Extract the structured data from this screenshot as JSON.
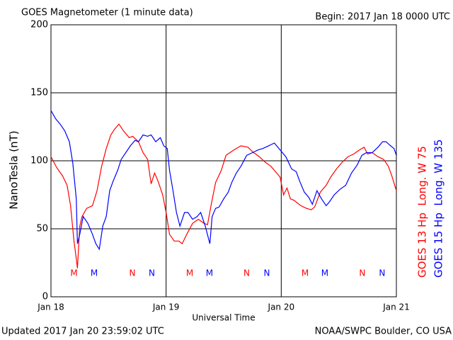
{
  "chart_data": {
    "type": "line",
    "title": "GOES Magnetometer (1 minute data)",
    "subtitle": "Begin:  2017 Jan 18 0000 UTC",
    "y_label": "NanoTesla (nT)",
    "x_label": "Universal Time",
    "footer_left": "Updated 2017 Jan 20 23:59:02 UTC",
    "footer_right": "NOAA/SWPC Boulder, CO USA",
    "xlim": [
      0,
      3
    ],
    "xticks": [
      {
        "value": 0,
        "label": "Jan 18"
      },
      {
        "value": 1,
        "label": "Jan 19"
      },
      {
        "value": 2,
        "label": "Jan 20"
      },
      {
        "value": 3,
        "label": "Jan 21"
      }
    ],
    "ylim": [
      0,
      200
    ],
    "yticks": [
      0,
      50,
      100,
      150,
      200
    ],
    "grid": true,
    "series": [
      {
        "name": "GOES 13 Hp  Long. W 75",
        "color": "#ff0000",
        "x": [
          0.0,
          0.05,
          0.1,
          0.14,
          0.17,
          0.2,
          0.22,
          0.23,
          0.25,
          0.27,
          0.31,
          0.36,
          0.4,
          0.44,
          0.48,
          0.52,
          0.55,
          0.59,
          0.63,
          0.68,
          0.71,
          0.76,
          0.8,
          0.84,
          0.87,
          0.9,
          0.93,
          0.97,
          1.0,
          1.03,
          1.07,
          1.11,
          1.14,
          1.18,
          1.23,
          1.28,
          1.33,
          1.36,
          1.39,
          1.43,
          1.48,
          1.52,
          1.59,
          1.65,
          1.71,
          1.76,
          1.81,
          1.86,
          1.91,
          1.95,
          1.99,
          2.02,
          2.05,
          2.08,
          2.11,
          2.17,
          2.22,
          2.26,
          2.29,
          2.34,
          2.39,
          2.43,
          2.48,
          2.53,
          2.58,
          2.63,
          2.68,
          2.72,
          2.75,
          2.79,
          2.84,
          2.89,
          2.93,
          2.96,
          3.0
        ],
        "values": [
          103,
          95,
          89,
          82,
          67,
          41,
          28,
          21,
          52,
          59,
          65,
          67,
          78,
          96,
          109,
          119,
          123,
          127,
          122,
          117,
          118,
          114,
          106,
          101,
          83,
          91,
          85,
          75,
          62,
          46,
          41,
          41,
          39,
          46,
          54,
          57,
          54,
          53,
          67,
          84,
          93,
          104,
          108,
          111,
          110,
          106,
          103,
          99,
          96,
          92,
          88,
          75,
          80,
          72,
          71,
          67,
          65,
          64,
          66,
          77,
          82,
          88,
          94,
          99,
          103,
          105,
          108,
          110,
          105,
          106,
          103,
          101,
          96,
          89,
          78
        ]
      },
      {
        "name": "GOES 15 Hp  Long. W 135",
        "color": "#0000ff",
        "x": [
          0.0,
          0.04,
          0.08,
          0.12,
          0.16,
          0.19,
          0.22,
          0.23,
          0.25,
          0.28,
          0.32,
          0.36,
          0.39,
          0.42,
          0.45,
          0.48,
          0.51,
          0.54,
          0.58,
          0.61,
          0.65,
          0.69,
          0.73,
          0.76,
          0.8,
          0.84,
          0.87,
          0.91,
          0.95,
          0.98,
          1.01,
          1.03,
          1.06,
          1.09,
          1.12,
          1.16,
          1.19,
          1.23,
          1.27,
          1.3,
          1.34,
          1.38,
          1.4,
          1.43,
          1.46,
          1.5,
          1.54,
          1.57,
          1.61,
          1.65,
          1.7,
          1.75,
          1.8,
          1.84,
          1.89,
          1.94,
          1.99,
          2.04,
          2.09,
          2.13,
          2.16,
          2.2,
          2.24,
          2.27,
          2.31,
          2.35,
          2.39,
          2.42,
          2.46,
          2.51,
          2.56,
          2.61,
          2.66,
          2.7,
          2.74,
          2.79,
          2.84,
          2.88,
          2.91,
          2.95,
          2.98,
          3.0
        ],
        "values": [
          137,
          131,
          127,
          122,
          114,
          98,
          72,
          39,
          46,
          59,
          54,
          46,
          39,
          35,
          52,
          59,
          78,
          85,
          93,
          101,
          106,
          111,
          115,
          114,
          119,
          118,
          119,
          114,
          117,
          111,
          109,
          93,
          78,
          62,
          52,
          62,
          62,
          57,
          59,
          62,
          52,
          39,
          59,
          65,
          66,
          72,
          77,
          84,
          91,
          96,
          104,
          106,
          108,
          109,
          111,
          113,
          108,
          103,
          94,
          92,
          85,
          77,
          73,
          68,
          78,
          72,
          67,
          70,
          75,
          79,
          82,
          91,
          97,
          104,
          106,
          106,
          110,
          114,
          114,
          111,
          109,
          104
        ]
      }
    ],
    "markers": [
      {
        "label": "M",
        "x": 0.2,
        "color": "#ff0000"
      },
      {
        "label": "M",
        "x": 0.375,
        "color": "#0000ff"
      },
      {
        "label": "N",
        "x": 0.707,
        "color": "#ff0000"
      },
      {
        "label": "N",
        "x": 0.876,
        "color": "#0000ff"
      },
      {
        "label": "M",
        "x": 1.205,
        "color": "#ff0000"
      },
      {
        "label": "M",
        "x": 1.377,
        "color": "#0000ff"
      },
      {
        "label": "N",
        "x": 1.7,
        "color": "#ff0000"
      },
      {
        "label": "N",
        "x": 1.875,
        "color": "#0000ff"
      },
      {
        "label": "M",
        "x": 2.207,
        "color": "#ff0000"
      },
      {
        "label": "M",
        "x": 2.379,
        "color": "#0000ff"
      },
      {
        "label": "N",
        "x": 2.704,
        "color": "#ff0000"
      },
      {
        "label": "N",
        "x": 2.876,
        "color": "#0000ff"
      }
    ]
  }
}
